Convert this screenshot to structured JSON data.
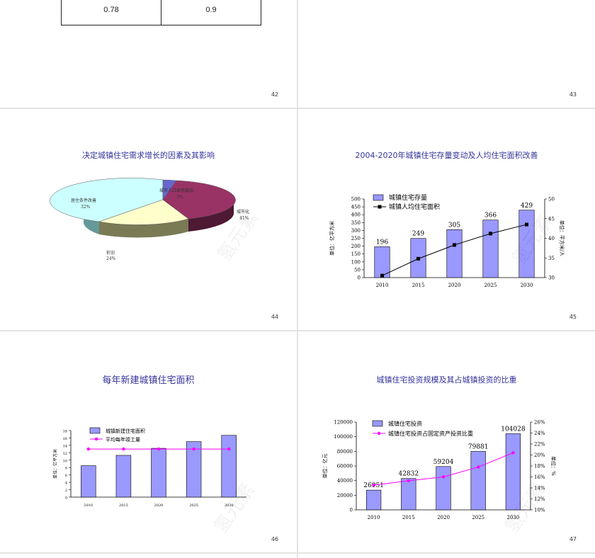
{
  "slides": [
    {
      "page": "42",
      "table": {
        "cells": [
          "0.78",
          "0.9"
        ]
      }
    },
    {
      "page": "43"
    },
    {
      "page": "44",
      "title": "决定城镇住宅需求增长的因素及其影响",
      "chart_data": {
        "type": "pie",
        "slices": [
          {
            "label": "城市人口自然增加",
            "pct": "3%",
            "value": 3,
            "color": "#6666cc"
          },
          {
            "label": "城市化",
            "pct": "41%",
            "value": 41,
            "color": "#993366"
          },
          {
            "label": "折旧",
            "pct": "24%",
            "value": 24,
            "color": "#ffffcc"
          },
          {
            "label": "居住条件改善",
            "pct": "32%",
            "value": 32,
            "color": "#ccffff"
          }
        ]
      }
    },
    {
      "page": "45",
      "title": "2004-2020年城镇住宅存量变动及人均住宅面积改善",
      "chart_data": {
        "type": "bar",
        "categories": [
          "2010",
          "2015",
          "2020",
          "2025",
          "2030"
        ],
        "series": [
          {
            "name": "城镇住宅存量",
            "values": [
              196,
              249,
              305,
              366,
              429
            ],
            "labels": [
              "196",
              "249",
              "305",
              "366",
              "429"
            ]
          },
          {
            "name": "城镇人均住宅面积",
            "values": [
              30.5,
              34.8,
              38.3,
              41.2,
              43.5
            ]
          }
        ],
        "ylabel": "单位：亿平方米",
        "y2label": "单位：平方米/人",
        "ylim": [
          0,
          500
        ],
        "y2lim": [
          30,
          50
        ],
        "yticks": [
          "0",
          "50",
          "100",
          "150",
          "200",
          "250",
          "300",
          "350",
          "400",
          "450",
          "500"
        ],
        "y2ticks": [
          "30",
          "35",
          "40",
          "45",
          "50"
        ],
        "bar_color": "#9999ff",
        "line_color": "#000000",
        "legend": "top-left"
      }
    },
    {
      "page": "46",
      "title": "每年新建城镇住宅面积",
      "chart_data": {
        "type": "bar",
        "categories": [
          "2010",
          "2015",
          "2020",
          "2025",
          "2030"
        ],
        "series": [
          {
            "name": "城镇新建住宅面积",
            "values": [
              8.5,
              11.3,
              13.2,
              15.0,
              16.7
            ]
          },
          {
            "name": "平均每年竣工量",
            "values": [
              13.0,
              13.0,
              13.0,
              13.0,
              13.0
            ]
          }
        ],
        "ylabel": "单位：亿平方米",
        "ylim": [
          0,
          18
        ],
        "yticks": [
          "0",
          "2",
          "4",
          "6",
          "8",
          "10",
          "12",
          "14",
          "16",
          "18"
        ],
        "bar_color": "#9999ff",
        "line_color": "#ff00ff",
        "legend": "top-left"
      }
    },
    {
      "page": "47",
      "title": "城镇住宅投资规模及其占城镇投资的比重",
      "chart_data": {
        "type": "bar",
        "categories": [
          "2010",
          "2015",
          "2020",
          "2025",
          "2030"
        ],
        "series": [
          {
            "name": "城镇住宅投资",
            "values": [
              26951,
              42832,
              59204,
              79881,
              104028
            ],
            "labels": [
              "26951",
              "42832",
              "59204",
              "79881",
              "104028"
            ]
          },
          {
            "name": "城镇住宅投资占固定资产投资比重",
            "values": [
              14.5,
              15.3,
              16.0,
              17.8,
              20.4
            ]
          }
        ],
        "ylabel": "单位：亿元",
        "y2label": "单位：%",
        "ylim": [
          0,
          120000
        ],
        "y2lim": [
          10,
          26
        ],
        "yticks": [
          "0",
          "20000",
          "40000",
          "60000",
          "80000",
          "100000",
          "120000"
        ],
        "y2ticks": [
          "10%",
          "12%",
          "14%",
          "16%",
          "18%",
          "20%",
          "22%",
          "24%",
          "26%"
        ],
        "bar_color": "#9999ff",
        "line_color": "#ff00ff",
        "legend": "top-left"
      }
    }
  ],
  "watermark": "氢元素"
}
